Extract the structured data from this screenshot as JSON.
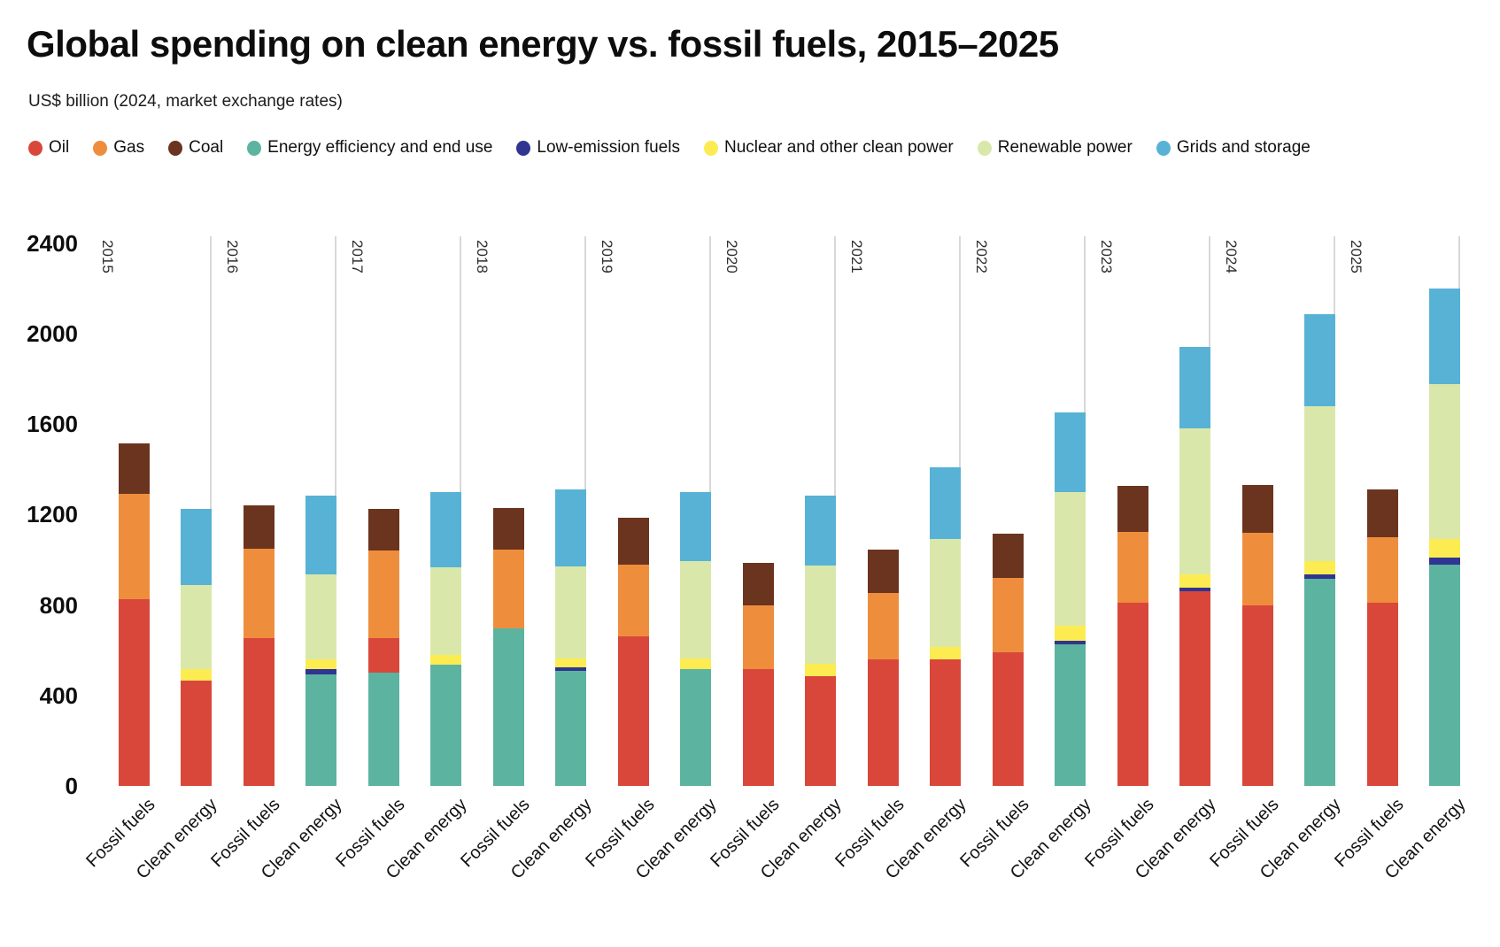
{
  "header": {
    "title": "Global spending on clean energy vs. fossil fuels, 2015–2025",
    "subtitle": "US$ billion (2024, market exchange rates)"
  },
  "chart_data": {
    "type": "bar",
    "stacked": true,
    "title": "Global spending on clean energy vs. fossil fuels, 2015–2025",
    "subtitle": "US$ billion (2024, market exchange rates)",
    "unit": "US$ billion (2024, market exchange rates)",
    "ylim": [
      0,
      2400
    ],
    "yticks": [
      0,
      400,
      800,
      1200,
      1600,
      2000,
      2400
    ],
    "grid": "vertical separators between year groups",
    "legend_position": "top",
    "legend": [
      {
        "label": "Oil",
        "color": "#d9473b"
      },
      {
        "label": "Gas",
        "color": "#ee8e3d"
      },
      {
        "label": "Coal",
        "color": "#6b341f"
      },
      {
        "label": "Energy efficiency and end use",
        "color": "#5cb3a0"
      },
      {
        "label": "Low-emission fuels",
        "color": "#2f3590"
      },
      {
        "label": "Nuclear and other clean power",
        "color": "#fcec52"
      },
      {
        "label": "Renewable power",
        "color": "#d9e8aa"
      },
      {
        "label": "Grids and storage",
        "color": "#57b2d6"
      }
    ],
    "bar_pair_labels": [
      "Fossil fuels",
      "Clean energy"
    ],
    "years": [
      {
        "year": "2015",
        "bars": [
          {
            "label": "Fossil fuels",
            "total": 1515,
            "segments": [
              [
                "Oil",
                825
              ],
              [
                "Gas",
                465
              ],
              [
                "Coal",
                225
              ]
            ]
          },
          {
            "label": "Clean energy",
            "total": 1225,
            "segments": [
              [
                "Oil",
                465
              ],
              [
                "Nuclear and other clean power",
                50
              ],
              [
                "Renewable power",
                375
              ],
              [
                "Grids and storage",
                335
              ]
            ]
          }
        ]
      },
      {
        "year": "2016",
        "bars": [
          {
            "label": "Fossil fuels",
            "total": 1240,
            "segments": [
              [
                "Oil",
                655
              ],
              [
                "Gas",
                395
              ],
              [
                "Coal",
                190
              ]
            ]
          },
          {
            "label": "Clean energy",
            "total": 1285,
            "segments": [
              [
                "Energy efficiency and end use",
                495
              ],
              [
                "Low-emission fuels",
                20
              ],
              [
                "Nuclear and other clean power",
                45
              ],
              [
                "Renewable power",
                375
              ],
              [
                "Grids and storage",
                350
              ]
            ]
          }
        ]
      },
      {
        "year": "2017",
        "bars": [
          {
            "label": "Fossil fuels",
            "total": 1225,
            "segments": [
              [
                "Energy efficiency and end use",
                500
              ],
              [
                "Oil",
                155
              ],
              [
                "Gas",
                385
              ],
              [
                "Coal",
                185
              ]
            ]
          },
          {
            "label": "Clean energy",
            "total": 1300,
            "segments": [
              [
                "Energy efficiency and end use",
                535
              ],
              [
                "Nuclear and other clean power",
                45
              ],
              [
                "Renewable power",
                385
              ],
              [
                "Grids and storage",
                335
              ]
            ]
          }
        ]
      },
      {
        "year": "2018",
        "bars": [
          {
            "label": "Fossil fuels",
            "total": 1230,
            "segments": [
              [
                "Energy efficiency and end use",
                695
              ],
              [
                "Gas",
                350
              ],
              [
                "Coal",
                185
              ]
            ]
          },
          {
            "label": "Clean energy",
            "total": 1310,
            "segments": [
              [
                "Energy efficiency and end use",
                510
              ],
              [
                "Low-emission fuels",
                15
              ],
              [
                "Nuclear and other clean power",
                40
              ],
              [
                "Renewable power",
                405
              ],
              [
                "Grids and storage",
                340
              ]
            ]
          }
        ]
      },
      {
        "year": "2019",
        "bars": [
          {
            "label": "Fossil fuels",
            "total": 1185,
            "segments": [
              [
                "Oil",
                660
              ],
              [
                "Gas",
                320
              ],
              [
                "Coal",
                205
              ]
            ]
          },
          {
            "label": "Clean energy",
            "total": 1300,
            "segments": [
              [
                "Energy efficiency and end use",
                515
              ],
              [
                "Nuclear and other clean power",
                50
              ],
              [
                "Renewable power",
                430
              ],
              [
                "Grids and storage",
                305
              ]
            ]
          }
        ]
      },
      {
        "year": "2020",
        "bars": [
          {
            "label": "Fossil fuels",
            "total": 985,
            "segments": [
              [
                "Oil",
                515
              ],
              [
                "Gas",
                285
              ],
              [
                "Coal",
                185
              ]
            ]
          },
          {
            "label": "Clean energy",
            "total": 1285,
            "segments": [
              [
                "Oil",
                485
              ],
              [
                "Nuclear and other clean power",
                55
              ],
              [
                "Renewable power",
                435
              ],
              [
                "Grids and storage",
                310
              ]
            ]
          }
        ]
      },
      {
        "year": "2021",
        "bars": [
          {
            "label": "Fossil fuels",
            "total": 1045,
            "segments": [
              [
                "Oil",
                560
              ],
              [
                "Gas",
                295
              ],
              [
                "Coal",
                190
              ]
            ]
          },
          {
            "label": "Clean energy",
            "total": 1410,
            "segments": [
              [
                "Oil",
                560
              ],
              [
                "Nuclear and other clean power",
                55
              ],
              [
                "Renewable power",
                475
              ],
              [
                "Grids and storage",
                320
              ]
            ]
          }
        ]
      },
      {
        "year": "2022",
        "bars": [
          {
            "label": "Fossil fuels",
            "total": 1115,
            "segments": [
              [
                "Oil",
                590
              ],
              [
                "Gas",
                330
              ],
              [
                "Coal",
                195
              ]
            ]
          },
          {
            "label": "Clean energy",
            "total": 1650,
            "segments": [
              [
                "Energy efficiency and end use",
                625
              ],
              [
                "Low-emission fuels",
                15
              ],
              [
                "Nuclear and other clean power",
                70
              ],
              [
                "Renewable power",
                590
              ],
              [
                "Grids and storage",
                350
              ]
            ]
          }
        ]
      },
      {
        "year": "2023",
        "bars": [
          {
            "label": "Fossil fuels",
            "total": 1325,
            "segments": [
              [
                "Oil",
                810
              ],
              [
                "Gas",
                315
              ],
              [
                "Coal",
                200
              ]
            ]
          },
          {
            "label": "Clean energy",
            "total": 1940,
            "segments": [
              [
                "Oil",
                860
              ],
              [
                "Low-emission fuels",
                15
              ],
              [
                "Nuclear and other clean power",
                60
              ],
              [
                "Renewable power",
                645
              ],
              [
                "Grids and storage",
                360
              ]
            ]
          }
        ]
      },
      {
        "year": "2024",
        "bars": [
          {
            "label": "Fossil fuels",
            "total": 1330,
            "segments": [
              [
                "Oil",
                800
              ],
              [
                "Gas",
                320
              ],
              [
                "Coal",
                210
              ]
            ]
          },
          {
            "label": "Clean energy",
            "total": 2085,
            "segments": [
              [
                "Energy efficiency and end use",
                915
              ],
              [
                "Low-emission fuels",
                20
              ],
              [
                "Nuclear and other clean power",
                60
              ],
              [
                "Renewable power",
                685
              ],
              [
                "Grids and storage",
                405
              ]
            ]
          }
        ]
      },
      {
        "year": "2025",
        "bars": [
          {
            "label": "Fossil fuels",
            "total": 1310,
            "segments": [
              [
                "Oil",
                810
              ],
              [
                "Gas",
                290
              ],
              [
                "Coal",
                210
              ]
            ]
          },
          {
            "label": "Clean energy",
            "total": 2200,
            "segments": [
              [
                "Energy efficiency and end use",
                980
              ],
              [
                "Low-emission fuels",
                30
              ],
              [
                "Nuclear and other clean power",
                80
              ],
              [
                "Renewable power",
                685
              ],
              [
                "Grids and storage",
                425
              ]
            ]
          }
        ]
      }
    ]
  }
}
